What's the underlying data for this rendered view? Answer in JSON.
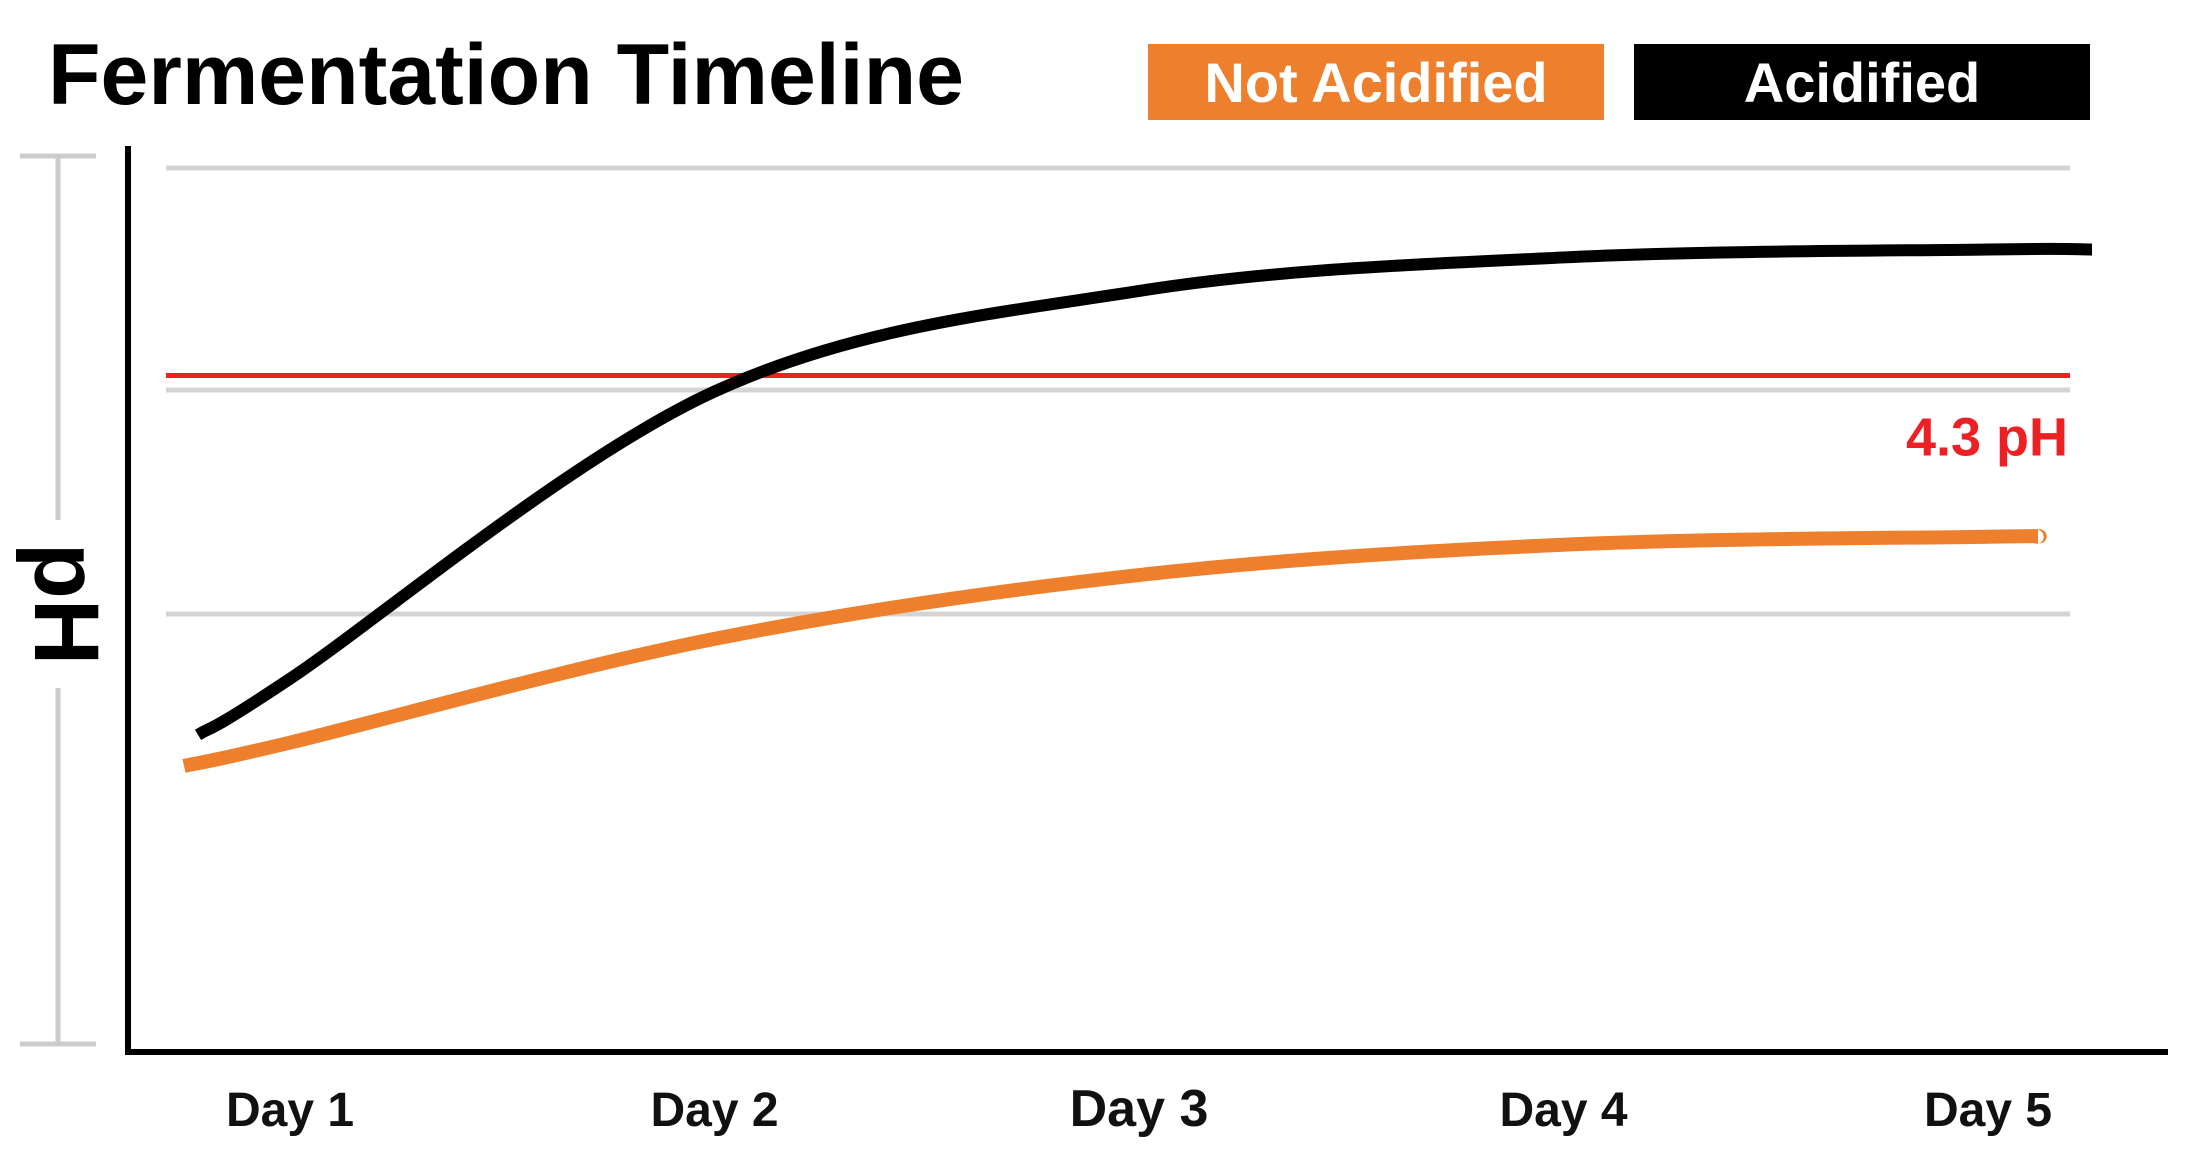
{
  "chart_data": {
    "type": "line",
    "title": "Fermentation Timeline",
    "xlabel": "",
    "ylabel": "pH",
    "categories": [
      "Day 1",
      "Day 2",
      "Day 3",
      "Day 4",
      "Day 5"
    ],
    "x": [
      1,
      2,
      3,
      4,
      5
    ],
    "y_ticks_labeled": false,
    "grid": true,
    "legend_position": "top-right",
    "series": [
      {
        "name": "Not Acidified",
        "color": "#ee7f2c",
        "values": [
          6.6,
          5.95,
          5.55,
          5.36,
          5.31
        ]
      },
      {
        "name": "Acidified",
        "color": "#000000",
        "values": [
          6.2,
          4.4,
          3.77,
          3.56,
          3.51
        ]
      }
    ],
    "annotations": [
      {
        "text": "4.3 pH",
        "y": 4.3,
        "color": "#ed2024"
      }
    ]
  }
}
